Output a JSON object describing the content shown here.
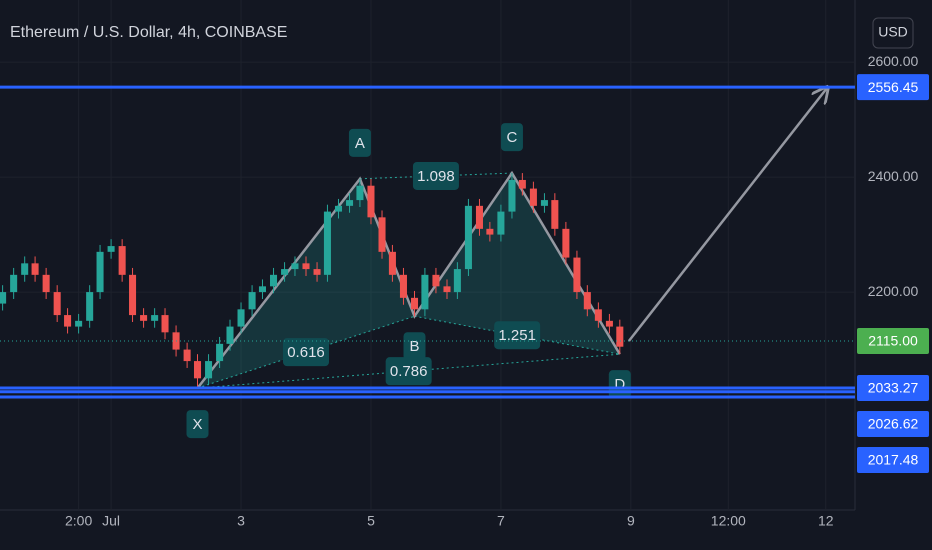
{
  "chart_data": {
    "type": "candlestick",
    "title": "Ethereum / U.S. Dollar, 4h, COINBASE",
    "currency": "USD",
    "up_color": "#26a69a",
    "down_color": "#ef5350",
    "grid": true,
    "xlim": [
      -0.71,
      12.45
    ],
    "ylim": [
      1821,
      2708
    ],
    "xticks": [
      {
        "value": 0.5,
        "label": "2:00"
      },
      {
        "value": 1,
        "label": "Jul"
      },
      3,
      5,
      7,
      9,
      {
        "value": 10.5,
        "label": "12:00"
      },
      12
    ],
    "yticks": [
      {
        "value": 2200,
        "label": "2200.00"
      },
      {
        "value": 2400,
        "label": "2400.00"
      },
      {
        "value": 2600,
        "label": "2600.00"
      }
    ],
    "x": [
      -0.67,
      -0.5,
      -0.33,
      -0.17,
      0,
      0.17,
      0.33,
      0.5,
      0.67,
      0.83,
      1,
      1.17,
      1.33,
      1.5,
      1.67,
      1.83,
      2,
      2.17,
      2.33,
      2.5,
      2.67,
      2.83,
      3,
      3.17,
      3.33,
      3.5,
      3.67,
      3.83,
      4,
      4.17,
      4.33,
      4.5,
      4.67,
      4.83,
      5,
      5.17,
      5.33,
      5.5,
      5.67,
      5.83,
      6,
      6.17,
      6.33,
      6.5,
      6.67,
      6.83,
      7,
      7.17,
      7.33,
      7.5,
      7.67,
      7.83,
      8,
      8.17,
      8.33,
      8.5,
      8.67,
      8.83
    ],
    "open": [
      2180,
      2200,
      2230,
      2250,
      2230,
      2200,
      2160,
      2140,
      2150,
      2200,
      2270,
      2280,
      2230,
      2160,
      2150,
      2160,
      2130,
      2100,
      2080,
      2050,
      2080,
      2110,
      2140,
      2170,
      2200,
      2210,
      2230,
      2240,
      2250,
      2240,
      2230,
      2340,
      2350,
      2360,
      2385,
      2330,
      2270,
      2230,
      2190,
      2170,
      2230,
      2210,
      2200,
      2240,
      2350,
      2310,
      2300,
      2340,
      2395,
      2380,
      2350,
      2360,
      2310,
      2260,
      2200,
      2170,
      2150,
      2140
    ],
    "high": [
      2212,
      2242,
      2262,
      2262,
      2242,
      2212,
      2172,
      2162,
      2212,
      2282,
      2292,
      2292,
      2242,
      2172,
      2172,
      2172,
      2142,
      2112,
      2092,
      2092,
      2122,
      2152,
      2182,
      2212,
      2222,
      2242,
      2252,
      2262,
      2262,
      2252,
      2352,
      2362,
      2372,
      2397,
      2397,
      2342,
      2282,
      2242,
      2202,
      2242,
      2242,
      2222,
      2252,
      2362,
      2362,
      2322,
      2352,
      2407,
      2407,
      2392,
      2372,
      2372,
      2322,
      2272,
      2212,
      2182,
      2162,
      2152
    ],
    "low": [
      2168,
      2188,
      2218,
      2218,
      2188,
      2148,
      2128,
      2128,
      2138,
      2188,
      2258,
      2218,
      2148,
      2138,
      2138,
      2118,
      2088,
      2068,
      2033,
      2038,
      2068,
      2098,
      2128,
      2158,
      2188,
      2198,
      2218,
      2228,
      2228,
      2218,
      2218,
      2328,
      2338,
      2348,
      2318,
      2258,
      2218,
      2178,
      2158,
      2158,
      2198,
      2188,
      2188,
      2228,
      2298,
      2288,
      2288,
      2328,
      2368,
      2338,
      2338,
      2298,
      2248,
      2188,
      2158,
      2138,
      2128,
      2092
    ],
    "close": [
      2200,
      2230,
      2250,
      2230,
      2200,
      2160,
      2140,
      2150,
      2200,
      2270,
      2280,
      2230,
      2160,
      2150,
      2160,
      2130,
      2100,
      2080,
      2050,
      2080,
      2110,
      2140,
      2170,
      2200,
      2210,
      2230,
      2240,
      2250,
      2240,
      2230,
      2340,
      2350,
      2360,
      2385,
      2330,
      2270,
      2230,
      2190,
      2170,
      2230,
      2210,
      2200,
      2240,
      2350,
      2310,
      2300,
      2340,
      2395,
      2380,
      2350,
      2360,
      2310,
      2260,
      2200,
      2170,
      2150,
      2140,
      2105
    ],
    "levels": [
      {
        "value": 2556.45,
        "label": "2556.45",
        "color": "#2962ff",
        "style": "solid"
      },
      {
        "value": 2115,
        "label": "2115.00",
        "color": "#4caf50",
        "style": "dotted"
      },
      {
        "value": 2033.27,
        "label": "2033.27",
        "color": "#2962ff",
        "style": "solid"
      },
      {
        "value": 2026.62,
        "label": "2026.62",
        "color": "#2962ff",
        "style": "solid"
      },
      {
        "value": 2017.48,
        "label": "2017.48",
        "color": "#2962ff",
        "style": "solid"
      }
    ],
    "pattern": {
      "labels": [
        "X",
        "A",
        "B",
        "C",
        "D"
      ],
      "x": [
        2.33,
        4.83,
        5.67,
        7.17,
        8.83
      ],
      "y": [
        2033,
        2397,
        2158,
        2407,
        2092
      ],
      "ratios": [
        0.616,
        0.786,
        1.098,
        1.251
      ]
    },
    "arrow": {
      "x": [
        8.97,
        12.03
      ],
      "y": [
        2115,
        2556.45
      ]
    }
  }
}
